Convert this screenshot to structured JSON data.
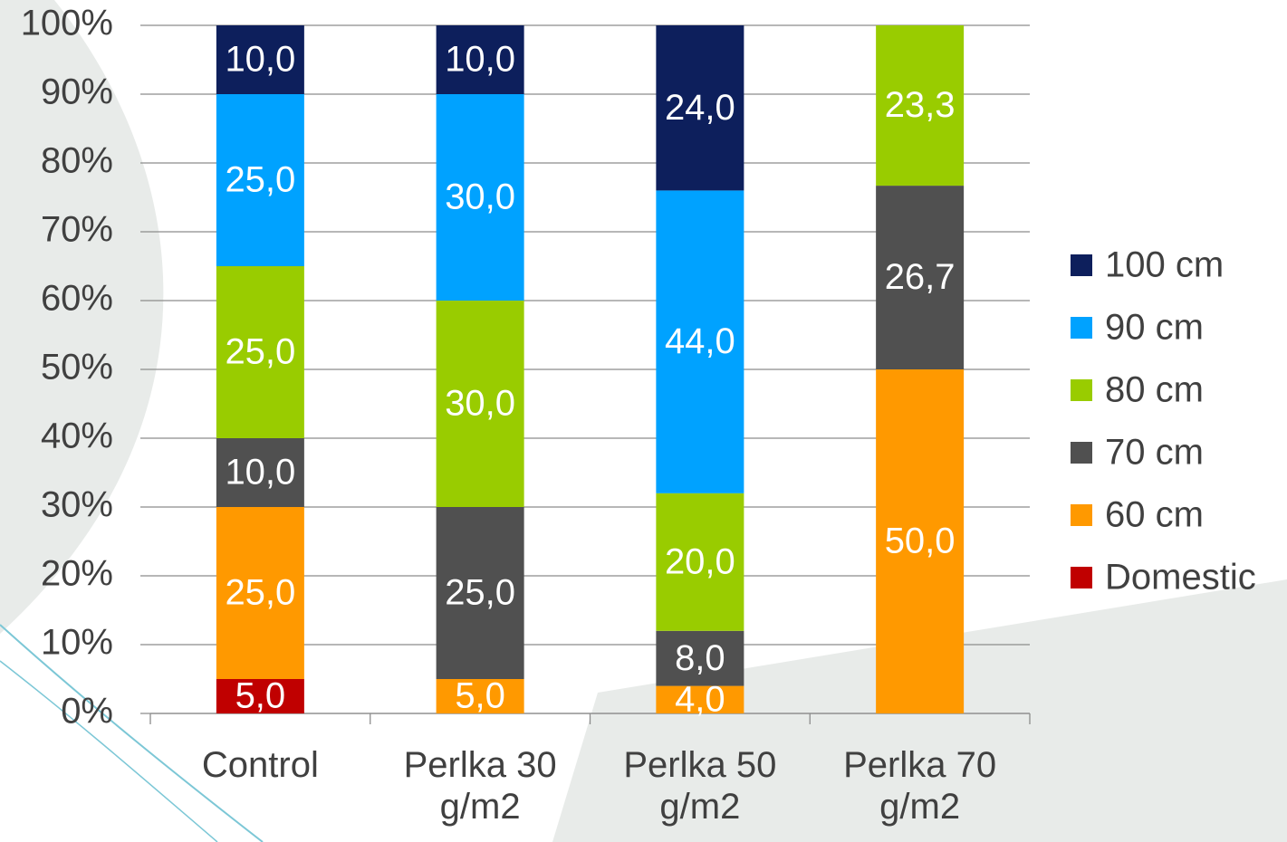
{
  "chart_data": {
    "type": "stacked_bar",
    "categories": [
      "Control",
      "Perlka 30 g/m2",
      "Perlka 50 g/m2",
      "Perlka 70 g/m2"
    ],
    "series": [
      {
        "name": "Domestic",
        "color": "#c00000",
        "values": [
          5.0,
          null,
          null,
          null
        ],
        "value_labels": [
          "5,0",
          null,
          null,
          null
        ]
      },
      {
        "name": "60 cm",
        "color": "#ff9900",
        "values": [
          25.0,
          5.0,
          4.0,
          50.0
        ],
        "value_labels": [
          "25,0",
          "5,0",
          "4,0",
          "50,0"
        ]
      },
      {
        "name": "70 cm",
        "color": "#505050",
        "values": [
          10.0,
          25.0,
          8.0,
          26.7
        ],
        "value_labels": [
          "10,0",
          "25,0",
          "8,0",
          "26,7"
        ]
      },
      {
        "name": "80 cm",
        "color": "#99cc00",
        "values": [
          25.0,
          30.0,
          20.0,
          23.3
        ],
        "value_labels": [
          "25,0",
          "30,0",
          "20,0",
          "23,3"
        ]
      },
      {
        "name": "90 cm",
        "color": "#00a2ff",
        "values": [
          25.0,
          30.0,
          44.0,
          null
        ],
        "value_labels": [
          "25,0",
          "30,0",
          "44,0",
          null
        ]
      },
      {
        "name": "100 cm",
        "color": "#0d1f5c",
        "values": [
          10.0,
          10.0,
          24.0,
          null
        ],
        "value_labels": [
          "10,0",
          "10,0",
          "24,0",
          null
        ]
      }
    ],
    "ylim": [
      0,
      100
    ],
    "yticks": [
      {
        "value": 0,
        "label": "0%"
      },
      {
        "value": 10,
        "label": "10%"
      },
      {
        "value": 20,
        "label": "20%"
      },
      {
        "value": 30,
        "label": "30%"
      },
      {
        "value": 40,
        "label": "40%"
      },
      {
        "value": 50,
        "label": "50%"
      },
      {
        "value": 60,
        "label": "60%"
      },
      {
        "value": 70,
        "label": "70%"
      },
      {
        "value": 80,
        "label": "80%"
      },
      {
        "value": 90,
        "label": "90%"
      },
      {
        "value": 100,
        "label": "100%"
      }
    ],
    "grid": true,
    "legend": "right"
  }
}
